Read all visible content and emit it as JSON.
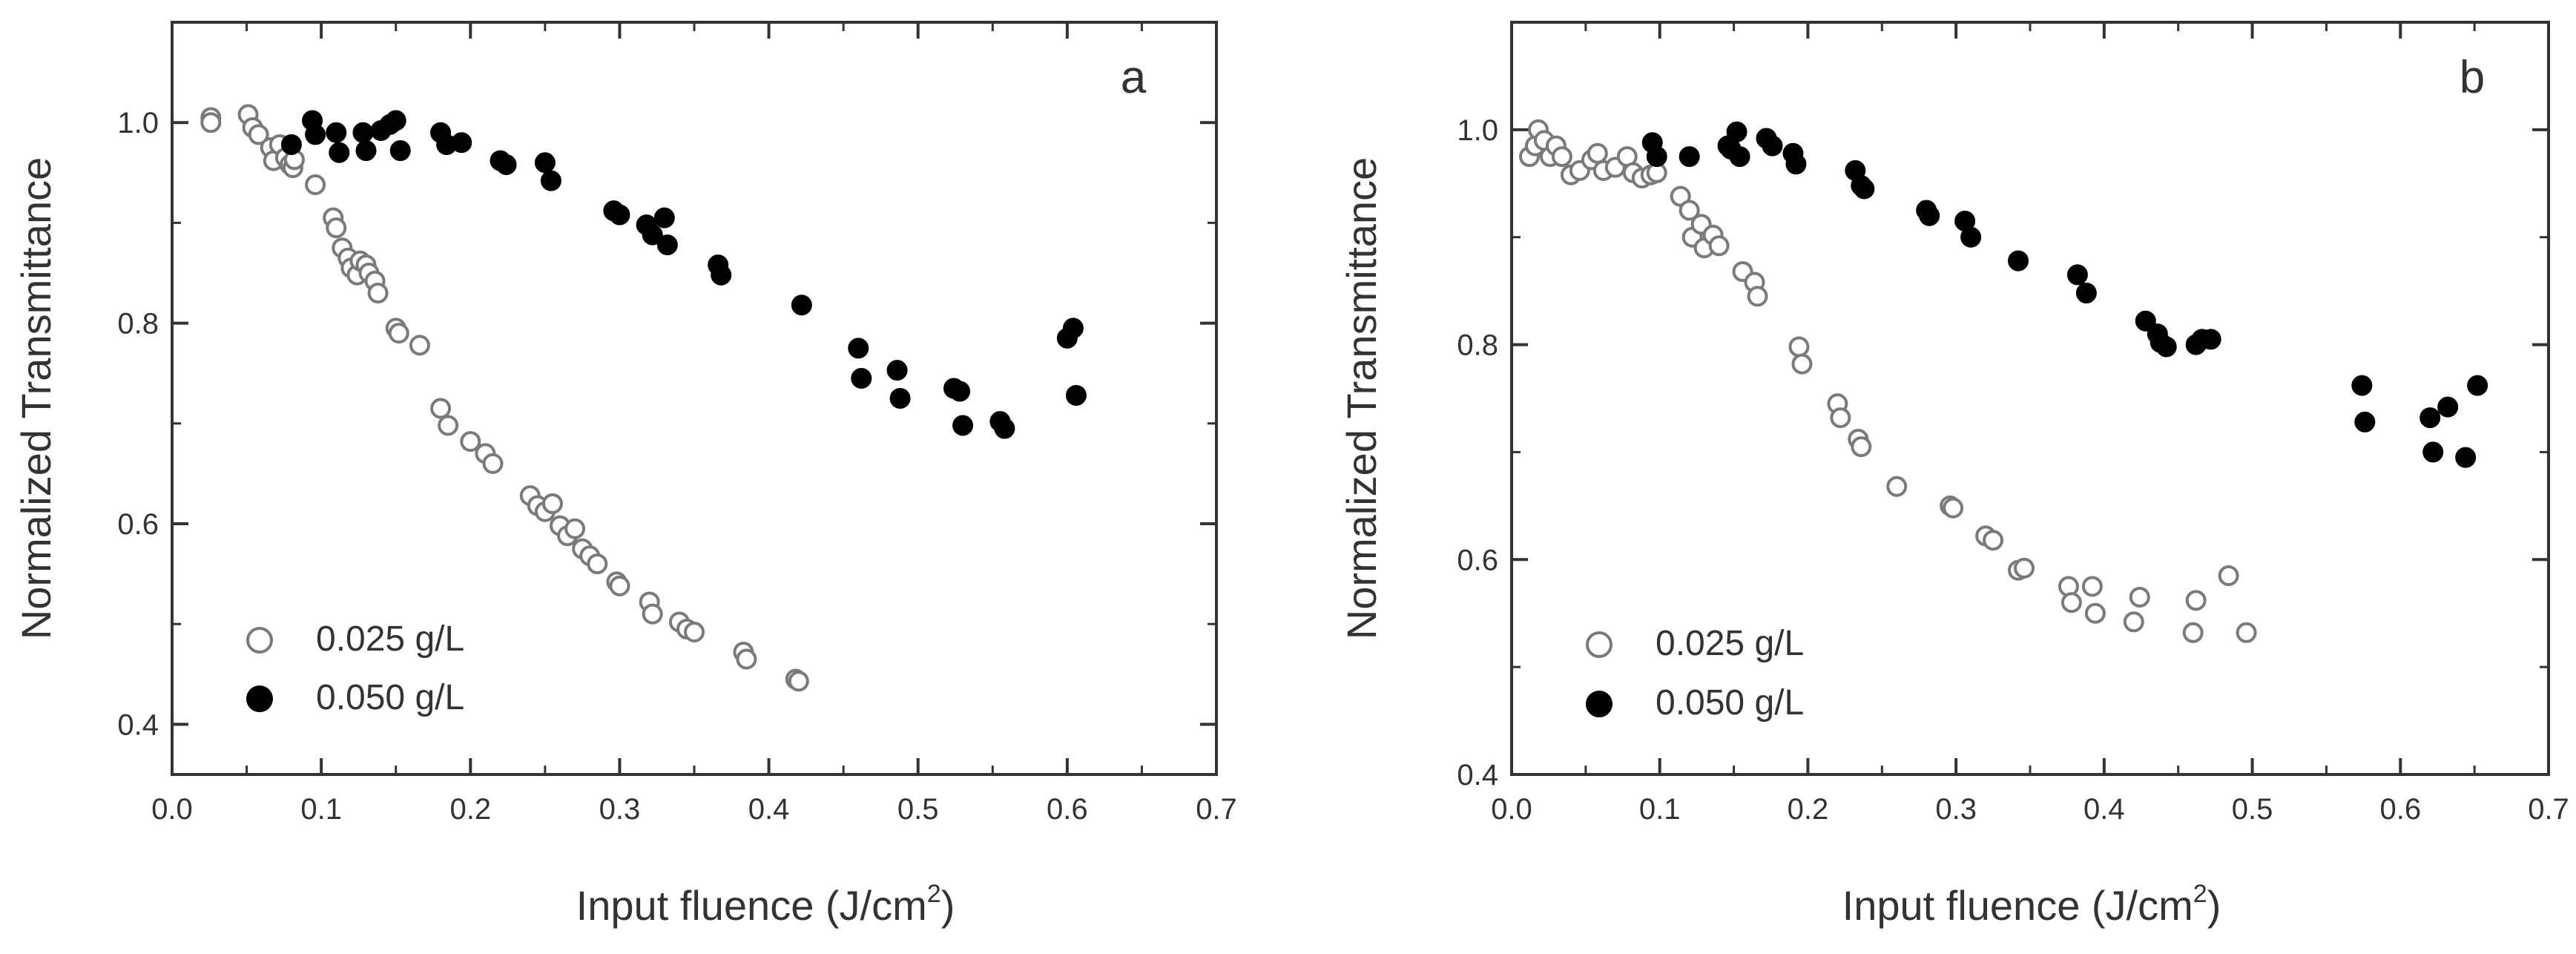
{
  "chart_data": [
    {
      "type": "scatter",
      "panel_label": "a",
      "xlabel_main": "Input fluence (J/cm",
      "xlabel_sup": "2",
      "xlabel_close": ")",
      "ylabel": "Normalized Transmittance",
      "xlim": [
        0.0,
        0.7
      ],
      "ylim": [
        0.35,
        1.1
      ],
      "xticks": [
        0.0,
        0.1,
        0.2,
        0.3,
        0.4,
        0.5,
        0.6,
        0.7
      ],
      "xtick_labels": [
        "0.0",
        "0.1",
        "0.2",
        "0.3",
        "0.4",
        "0.5",
        "0.6",
        "0.7"
      ],
      "yticks": [
        0.4,
        0.6,
        0.8,
        1.0
      ],
      "ytick_labels": [
        "0.4",
        "0.6",
        "0.8",
        "1.0"
      ],
      "grid": false,
      "legend_position": "bottom-left",
      "series": [
        {
          "name": "0.025 g/L",
          "marker": "open-circle",
          "color": "#7a7a7a",
          "points": [
            [
              0.026,
              1.005
            ],
            [
              0.026,
              1.0
            ],
            [
              0.051,
              1.008
            ],
            [
              0.054,
              0.995
            ],
            [
              0.058,
              0.988
            ],
            [
              0.066,
              0.975
            ],
            [
              0.068,
              0.962
            ],
            [
              0.072,
              0.978
            ],
            [
              0.076,
              0.965
            ],
            [
              0.079,
              0.958
            ],
            [
              0.081,
              0.955
            ],
            [
              0.082,
              0.963
            ],
            [
              0.096,
              0.938
            ],
            [
              0.108,
              0.905
            ],
            [
              0.11,
              0.895
            ],
            [
              0.114,
              0.875
            ],
            [
              0.118,
              0.865
            ],
            [
              0.12,
              0.855
            ],
            [
              0.124,
              0.848
            ],
            [
              0.126,
              0.862
            ],
            [
              0.13,
              0.858
            ],
            [
              0.132,
              0.85
            ],
            [
              0.136,
              0.842
            ],
            [
              0.138,
              0.83
            ],
            [
              0.15,
              0.795
            ],
            [
              0.152,
              0.79
            ],
            [
              0.166,
              0.778
            ],
            [
              0.18,
              0.715
            ],
            [
              0.185,
              0.698
            ],
            [
              0.2,
              0.682
            ],
            [
              0.21,
              0.67
            ],
            [
              0.215,
              0.66
            ],
            [
              0.24,
              0.628
            ],
            [
              0.245,
              0.618
            ],
            [
              0.25,
              0.612
            ],
            [
              0.255,
              0.62
            ],
            [
              0.26,
              0.598
            ],
            [
              0.265,
              0.588
            ],
            [
              0.27,
              0.595
            ],
            [
              0.275,
              0.575
            ],
            [
              0.28,
              0.568
            ],
            [
              0.285,
              0.56
            ],
            [
              0.298,
              0.542
            ],
            [
              0.3,
              0.538
            ],
            [
              0.32,
              0.522
            ],
            [
              0.322,
              0.51
            ],
            [
              0.34,
              0.502
            ],
            [
              0.345,
              0.495
            ],
            [
              0.35,
              0.492
            ],
            [
              0.383,
              0.472
            ],
            [
              0.385,
              0.465
            ],
            [
              0.418,
              0.445
            ],
            [
              0.42,
              0.443
            ]
          ]
        },
        {
          "name": "0.050 g/L",
          "marker": "filled-circle",
          "color": "#000000",
          "points": [
            [
              0.08,
              0.978
            ],
            [
              0.094,
              1.002
            ],
            [
              0.096,
              0.988
            ],
            [
              0.11,
              0.99
            ],
            [
              0.112,
              0.97
            ],
            [
              0.128,
              0.99
            ],
            [
              0.13,
              0.972
            ],
            [
              0.14,
              0.992
            ],
            [
              0.146,
              0.998
            ],
            [
              0.15,
              1.002
            ],
            [
              0.153,
              0.972
            ],
            [
              0.18,
              0.99
            ],
            [
              0.184,
              0.978
            ],
            [
              0.194,
              0.98
            ],
            [
              0.22,
              0.962
            ],
            [
              0.224,
              0.958
            ],
            [
              0.25,
              0.96
            ],
            [
              0.254,
              0.942
            ],
            [
              0.296,
              0.912
            ],
            [
              0.3,
              0.908
            ],
            [
              0.318,
              0.898
            ],
            [
              0.322,
              0.888
            ],
            [
              0.33,
              0.905
            ],
            [
              0.332,
              0.878
            ],
            [
              0.366,
              0.858
            ],
            [
              0.368,
              0.848
            ],
            [
              0.422,
              0.818
            ],
            [
              0.46,
              0.775
            ],
            [
              0.462,
              0.745
            ],
            [
              0.486,
              0.753
            ],
            [
              0.488,
              0.725
            ],
            [
              0.524,
              0.735
            ],
            [
              0.528,
              0.732
            ],
            [
              0.53,
              0.698
            ],
            [
              0.555,
              0.702
            ],
            [
              0.558,
              0.695
            ],
            [
              0.6,
              0.785
            ],
            [
              0.604,
              0.795
            ],
            [
              0.606,
              0.728
            ]
          ]
        }
      ]
    },
    {
      "type": "scatter",
      "panel_label": "b",
      "xlabel_main": "Input fluence (J/cm",
      "xlabel_sup": "2",
      "xlabel_close": ")",
      "ylabel": "Normalized Transmittance",
      "xlim": [
        0.0,
        0.7
      ],
      "ylim": [
        0.4,
        1.1
      ],
      "xticks": [
        0.0,
        0.1,
        0.2,
        0.3,
        0.4,
        0.5,
        0.6,
        0.7
      ],
      "xtick_labels": [
        "0.0",
        "0.1",
        "0.2",
        "0.3",
        "0.4",
        "0.5",
        "0.6",
        "0.7"
      ],
      "yticks": [
        0.4,
        0.6,
        0.8,
        1.0
      ],
      "ytick_labels": [
        "0.4",
        "0.6",
        "0.8",
        "1.0"
      ],
      "grid": false,
      "legend_position": "bottom-left",
      "series": [
        {
          "name": "0.025 g/L",
          "marker": "open-circle",
          "color": "#7a7a7a",
          "points": [
            [
              0.012,
              0.975
            ],
            [
              0.016,
              0.985
            ],
            [
              0.018,
              1.0
            ],
            [
              0.022,
              0.99
            ],
            [
              0.026,
              0.975
            ],
            [
              0.03,
              0.985
            ],
            [
              0.034,
              0.975
            ],
            [
              0.04,
              0.958
            ],
            [
              0.046,
              0.962
            ],
            [
              0.054,
              0.972
            ],
            [
              0.058,
              0.978
            ],
            [
              0.062,
              0.962
            ],
            [
              0.07,
              0.965
            ],
            [
              0.078,
              0.975
            ],
            [
              0.082,
              0.96
            ],
            [
              0.088,
              0.955
            ],
            [
              0.094,
              0.958
            ],
            [
              0.098,
              0.96
            ],
            [
              0.114,
              0.938
            ],
            [
              0.12,
              0.925
            ],
            [
              0.122,
              0.9
            ],
            [
              0.128,
              0.912
            ],
            [
              0.13,
              0.89
            ],
            [
              0.136,
              0.902
            ],
            [
              0.14,
              0.892
            ],
            [
              0.156,
              0.868
            ],
            [
              0.164,
              0.858
            ],
            [
              0.166,
              0.845
            ],
            [
              0.194,
              0.798
            ],
            [
              0.196,
              0.782
            ],
            [
              0.22,
              0.745
            ],
            [
              0.222,
              0.732
            ],
            [
              0.234,
              0.712
            ],
            [
              0.236,
              0.705
            ],
            [
              0.26,
              0.668
            ],
            [
              0.296,
              0.65
            ],
            [
              0.298,
              0.648
            ],
            [
              0.32,
              0.622
            ],
            [
              0.325,
              0.618
            ],
            [
              0.342,
              0.59
            ],
            [
              0.346,
              0.592
            ],
            [
              0.376,
              0.575
            ],
            [
              0.378,
              0.56
            ],
            [
              0.392,
              0.575
            ],
            [
              0.394,
              0.55
            ],
            [
              0.42,
              0.542
            ],
            [
              0.424,
              0.565
            ],
            [
              0.46,
              0.532
            ],
            [
              0.462,
              0.562
            ],
            [
              0.484,
              0.585
            ],
            [
              0.496,
              0.532
            ]
          ]
        },
        {
          "name": "0.050 g/L",
          "marker": "filled-circle",
          "color": "#000000",
          "points": [
            [
              0.095,
              0.988
            ],
            [
              0.098,
              0.975
            ],
            [
              0.12,
              0.975
            ],
            [
              0.146,
              0.985
            ],
            [
              0.148,
              0.982
            ],
            [
              0.152,
              0.998
            ],
            [
              0.154,
              0.975
            ],
            [
              0.172,
              0.992
            ],
            [
              0.176,
              0.985
            ],
            [
              0.19,
              0.978
            ],
            [
              0.192,
              0.968
            ],
            [
              0.232,
              0.962
            ],
            [
              0.236,
              0.948
            ],
            [
              0.238,
              0.945
            ],
            [
              0.28,
              0.925
            ],
            [
              0.282,
              0.92
            ],
            [
              0.306,
              0.915
            ],
            [
              0.31,
              0.9
            ],
            [
              0.342,
              0.878
            ],
            [
              0.382,
              0.865
            ],
            [
              0.388,
              0.848
            ],
            [
              0.428,
              0.822
            ],
            [
              0.436,
              0.81
            ],
            [
              0.438,
              0.802
            ],
            [
              0.442,
              0.798
            ],
            [
              0.462,
              0.8
            ],
            [
              0.466,
              0.805
            ],
            [
              0.472,
              0.805
            ],
            [
              0.574,
              0.762
            ],
            [
              0.576,
              0.728
            ],
            [
              0.62,
              0.732
            ],
            [
              0.622,
              0.7
            ],
            [
              0.632,
              0.742
            ],
            [
              0.644,
              0.695
            ],
            [
              0.652,
              0.762
            ]
          ]
        }
      ]
    }
  ]
}
